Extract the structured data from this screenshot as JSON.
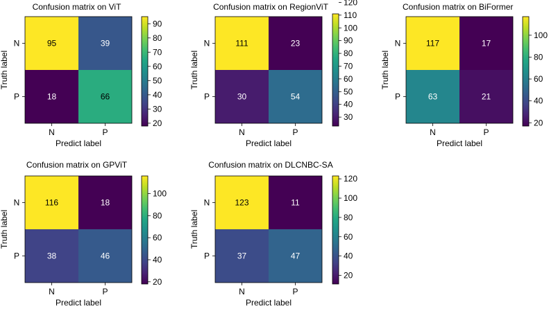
{
  "chart_data": [
    {
      "type": "heatmap",
      "title": "Confusion matrix on ViT",
      "xlabel": "Predict label",
      "ylabel": "Truth label",
      "x_categories": [
        "N",
        "P"
      ],
      "y_categories": [
        "N",
        "P"
      ],
      "values": [
        [
          95,
          39
        ],
        [
          18,
          66
        ]
      ],
      "colormap": "viridis",
      "colorbar": {
        "range": [
          18,
          95
        ],
        "ticks": [
          20,
          30,
          40,
          50,
          60,
          70,
          80,
          90
        ]
      }
    },
    {
      "type": "heatmap",
      "title": "Confusion matrix on RegionViT",
      "xlabel": "Predict label",
      "ylabel": "Truth label",
      "x_categories": [
        "N",
        "P"
      ],
      "y_categories": [
        "N",
        "P"
      ],
      "values": [
        [
          111,
          23
        ],
        [
          30,
          54
        ]
      ],
      "colormap": "viridis",
      "colorbar": {
        "range": [
          23,
          111
        ],
        "ticks": [
          30,
          40,
          50,
          60,
          70,
          80,
          90,
          100,
          110,
          120
        ]
      }
    },
    {
      "type": "heatmap",
      "title": "Confusion matrix on BiFormer",
      "xlabel": "Predict label",
      "ylabel": "Truth label",
      "x_categories": [
        "N",
        "P"
      ],
      "y_categories": [
        "N",
        "P"
      ],
      "values": [
        [
          117,
          17
        ],
        [
          63,
          21
        ]
      ],
      "colormap": "viridis",
      "colorbar": {
        "range": [
          17,
          117
        ],
        "ticks": [
          20,
          40,
          60,
          80,
          100
        ]
      }
    },
    {
      "type": "heatmap",
      "title": "Confusion matrix on GPViT",
      "xlabel": "Predict label",
      "ylabel": "Truth label",
      "x_categories": [
        "N",
        "P"
      ],
      "y_categories": [
        "N",
        "P"
      ],
      "values": [
        [
          116,
          18
        ],
        [
          38,
          46
        ]
      ],
      "colormap": "viridis",
      "colorbar": {
        "range": [
          18,
          116
        ],
        "ticks": [
          20,
          40,
          60,
          80,
          100
        ]
      }
    },
    {
      "type": "heatmap",
      "title": "Confusion matrix on DLCNBC-SA",
      "xlabel": "Predict label",
      "ylabel": "Truth label",
      "x_categories": [
        "N",
        "P"
      ],
      "y_categories": [
        "N",
        "P"
      ],
      "values": [
        [
          123,
          11
        ],
        [
          37,
          47
        ]
      ],
      "colormap": "viridis",
      "colorbar": {
        "range": [
          11,
          123
        ],
        "ticks": [
          20,
          40,
          60,
          80,
          100,
          120
        ]
      }
    }
  ]
}
